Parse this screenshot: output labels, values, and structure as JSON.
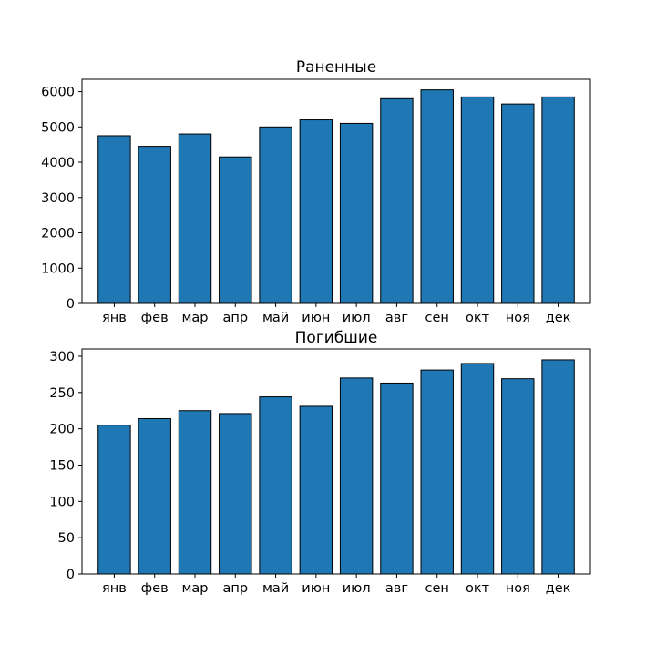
{
  "chart_data": [
    {
      "type": "bar",
      "title": "Раненные",
      "xlabel": "",
      "ylabel": "",
      "categories": [
        "янв",
        "фев",
        "мар",
        "апр",
        "май",
        "июн",
        "июл",
        "авг",
        "сен",
        "окт",
        "ноя",
        "дек"
      ],
      "values": [
        4750,
        4450,
        4800,
        4150,
        5000,
        5200,
        5100,
        5800,
        6050,
        5850,
        5650,
        5850
      ],
      "ylim": [
        0,
        6350
      ],
      "yticks": [
        0,
        1000,
        2000,
        3000,
        4000,
        5000,
        6000
      ],
      "ytick_labels": [
        "0",
        "1000",
        "2000",
        "3000",
        "4000",
        "5000",
        "6000"
      ],
      "bar_color": "#1f77b4",
      "edge_color": "#000000",
      "grid": false,
      "legend": "none"
    },
    {
      "type": "bar",
      "title": "Погибшие",
      "xlabel": "",
      "ylabel": "",
      "categories": [
        "янв",
        "фев",
        "мар",
        "апр",
        "май",
        "июн",
        "июл",
        "авг",
        "сен",
        "окт",
        "ноя",
        "дек"
      ],
      "values": [
        205,
        214,
        225,
        221,
        244,
        231,
        270,
        263,
        281,
        290,
        269,
        295
      ],
      "ylim": [
        0,
        310
      ],
      "yticks": [
        0,
        50,
        100,
        150,
        200,
        250,
        300
      ],
      "ytick_labels": [
        "0",
        "50",
        "100",
        "150",
        "200",
        "250",
        "300"
      ],
      "bar_color": "#1f77b4",
      "edge_color": "#000000",
      "grid": false,
      "legend": "none"
    }
  ]
}
